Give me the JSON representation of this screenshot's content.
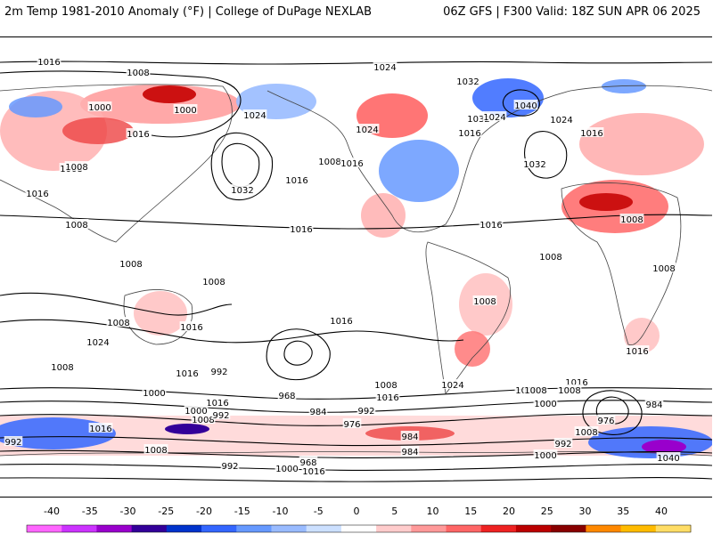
{
  "header": {
    "left_title": "2m Temp 1981-2010 Anomaly (°F) | College of DuPage NEXLAB",
    "right_title": "06Z GFS | F300 Valid: 18Z SUN APR 06 2025"
  },
  "map": {
    "projection": "global equirectangular",
    "field": "2m temperature anomaly shading with MSLP isobars",
    "isobar_labels": [
      "1016",
      "1008",
      "1024",
      "1032",
      "1000",
      "1000",
      "1008",
      "1016",
      "1024",
      "1024",
      "1032",
      "1024",
      "1040",
      "1024",
      "1016",
      "1008",
      "1016",
      "1032",
      "1016",
      "1008",
      "1016",
      "1032",
      "1016",
      "1008",
      "1016",
      "1008",
      "1016",
      "1008",
      "1008",
      "1008",
      "1008",
      "1008",
      "1016",
      "1008",
      "1016",
      "1016",
      "1024",
      "1016",
      "992",
      "1008",
      "1000",
      "1008",
      "1016",
      "1024",
      "1000",
      "992",
      "1008",
      "1016",
      "1000",
      "1008",
      "992",
      "984",
      "968",
      "976",
      "1000",
      "976",
      "984",
      "992",
      "1016",
      "1000",
      "1016",
      "1008",
      "984",
      "992",
      "1008",
      "984",
      "992",
      "968",
      "1000",
      "1016",
      "1008",
      "1040"
    ]
  },
  "colorbar": {
    "ticks": [
      "-40",
      "-35",
      "-30",
      "-25",
      "-20",
      "-15",
      "-10",
      "-5",
      "0",
      "5",
      "10",
      "15",
      "20",
      "25",
      "30",
      "35",
      "40"
    ],
    "colors": [
      "#ff66ff",
      "#cc33ff",
      "#9900cc",
      "#330099",
      "#0033cc",
      "#3366ff",
      "#6699ff",
      "#99bbff",
      "#cce0ff",
      "#ffffff",
      "#ffcccc",
      "#ff9999",
      "#ff6666",
      "#ee2222",
      "#bb0000",
      "#880000",
      "#ff8800",
      "#ffbb00",
      "#ffdd66"
    ]
  }
}
